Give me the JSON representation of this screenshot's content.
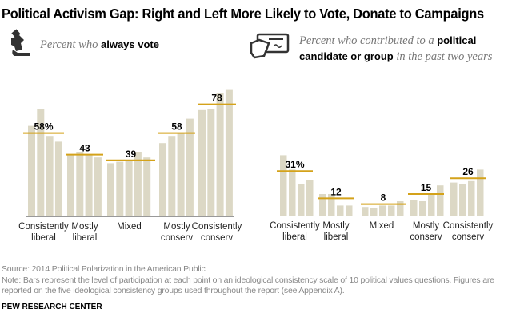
{
  "title": "Political Activism Gap: Right and Left More Likely to Vote, Donate to Campaigns",
  "panels": [
    {
      "icon": "hand-ballot-icon",
      "subtitle_pre": "Percent who ",
      "subtitle_bold": "always vote",
      "subtitle_post": ""
    },
    {
      "icon": "hand-check-icon",
      "subtitle_pre": "Percent who contributed to a ",
      "subtitle_bold": "political candidate or group",
      "subtitle_post": " in the past two years"
    }
  ],
  "colors": {
    "bar": "#dcd8c5",
    "avg_line": "#d4a21a",
    "axis": "#999999"
  },
  "chart_data": [
    {
      "type": "bar",
      "categories": [
        "Consistently liberal",
        "Mostly liberal",
        "Mixed",
        "Mostly conserv",
        "Consistently conserv"
      ],
      "bars": [
        [
          63,
          75,
          56,
          52
        ],
        [
          43,
          45,
          43,
          41
        ],
        [
          37,
          38,
          39,
          45,
          41
        ],
        [
          51,
          56,
          58,
          68
        ],
        [
          74,
          75,
          86,
          88
        ]
      ],
      "group_values": [
        58,
        43,
        39,
        58,
        78
      ],
      "group_labels": [
        "58%",
        "43",
        "39",
        "58",
        "78"
      ],
      "ylim": [
        0,
        100
      ]
    },
    {
      "type": "bar",
      "categories": [
        "Consistently liberal",
        "Mostly liberal",
        "Mixed",
        "Mostly conserv",
        "Consistently conserv"
      ],
      "bars": [
        [
          42,
          32,
          22,
          25
        ],
        [
          15,
          15,
          7,
          7
        ],
        [
          6,
          5,
          7,
          7,
          10
        ],
        [
          11,
          10,
          15,
          21
        ],
        [
          23,
          22,
          24,
          32
        ]
      ],
      "group_values": [
        31,
        12,
        8,
        15,
        26
      ],
      "group_labels": [
        "31%",
        "12",
        "8",
        "15",
        "26"
      ],
      "ylim": [
        0,
        100
      ]
    }
  ],
  "footer": {
    "source": "Source: 2014 Political Polarization in the American Public",
    "note1": "Note: Bars represent the level of participation at each point on an ideological consistency scale of 10 political values questions. Figures are",
    "note2": "reported on the five ideological consistency groups used throughout the report (see Appendix A).",
    "org": "PEW RESEARCH CENTER"
  }
}
